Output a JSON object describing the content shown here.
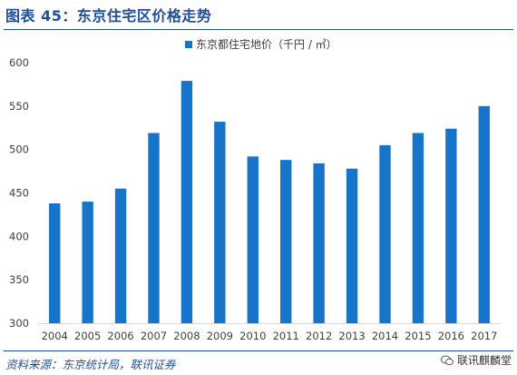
{
  "figure": {
    "title": "图表 45：东京住宅区价格走势",
    "source": "资料来源：东京统计局，联讯证券",
    "watermark": "联讯麒麟堂"
  },
  "colors": {
    "bar": "#1874c8",
    "title": "#1f4e9c",
    "axis": "#d9d9d9",
    "text": "#404040"
  },
  "chart_data": {
    "type": "bar",
    "categories": [
      "2004",
      "2005",
      "2006",
      "2007",
      "2008",
      "2009",
      "2010",
      "2011",
      "2012",
      "2013",
      "2014",
      "2015",
      "2016",
      "2017"
    ],
    "series": [
      {
        "name": "东京都住宅地价（千円 / ㎡）",
        "values": [
          438,
          440,
          455,
          519,
          579,
          532,
          492,
          488,
          484,
          478,
          505,
          519,
          524,
          550
        ]
      }
    ],
    "ylim": [
      300,
      600
    ],
    "yticks": [
      300,
      350,
      400,
      450,
      500,
      550,
      600
    ],
    "legend_position": "top",
    "grid": false
  }
}
